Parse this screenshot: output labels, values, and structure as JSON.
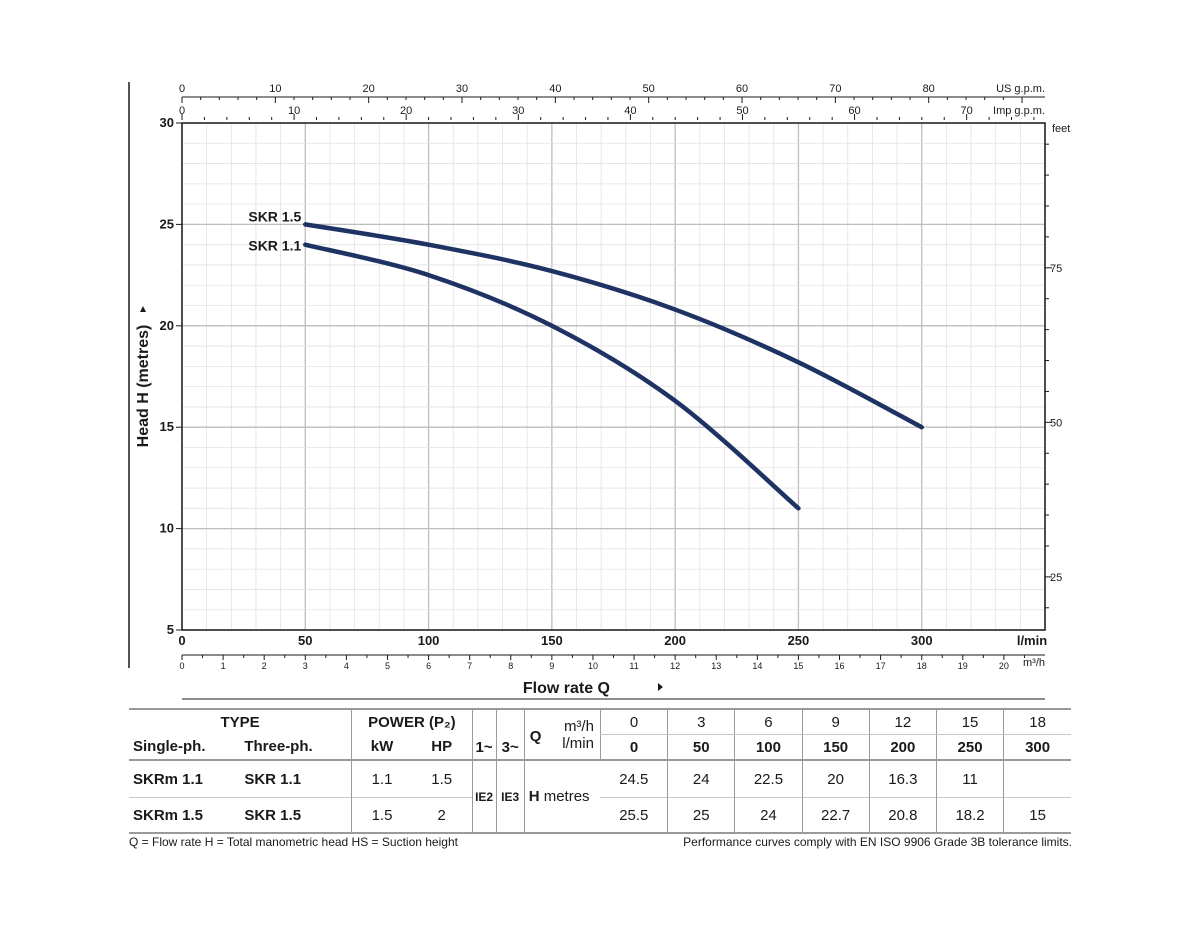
{
  "chart_data": {
    "type": "line",
    "ylabel": "Head H (metres)",
    "xlabel": "Flow rate Q",
    "x_unit": "l/min",
    "xlim": [
      0,
      350
    ],
    "ylim": [
      5,
      30
    ],
    "y_ticks": [
      5,
      10,
      15,
      20,
      25,
      30
    ],
    "x_ticks": [
      0,
      50,
      100,
      150,
      200,
      250,
      300
    ],
    "grid": true,
    "series": [
      {
        "name": "SKR 1.5",
        "color": "#1f3264",
        "x": [
          50,
          100,
          150,
          200,
          250,
          300
        ],
        "y": [
          25,
          24,
          22.7,
          20.8,
          18.2,
          15
        ]
      },
      {
        "name": "SKR 1.1",
        "color": "#1f3264",
        "x": [
          50,
          100,
          150,
          200,
          250
        ],
        "y": [
          24,
          22.5,
          20,
          16.3,
          11
        ]
      }
    ],
    "top_axis_us": {
      "label": "US g.p.m.",
      "ticks": [
        0,
        10,
        20,
        30,
        40,
        50,
        60,
        70,
        80
      ]
    },
    "top_axis_imp": {
      "label": "Imp g.p.m.",
      "ticks": [
        0,
        10,
        20,
        30,
        40,
        50,
        60,
        70
      ]
    },
    "right_axis": {
      "label": "feet",
      "ticks": [
        25,
        50,
        75
      ]
    },
    "bottom_axis_m3h": {
      "label": "m³/h",
      "ticks": [
        0,
        1,
        2,
        3,
        4,
        5,
        6,
        7,
        8,
        9,
        10,
        11,
        12,
        13,
        14,
        15,
        16,
        17,
        18,
        19,
        20
      ]
    }
  },
  "table": {
    "type_header": "TYPE",
    "power_header": "POWER (P₂)",
    "single_ph": "Single-ph.",
    "three_ph": "Three-ph.",
    "kw": "kW",
    "hp": "HP",
    "phase1": "1~",
    "phase3": "3~",
    "q_label": "Q",
    "m3h_label": "m³/h",
    "lmin_label": "l/min",
    "m3h_values": [
      "0",
      "3",
      "6",
      "9",
      "12",
      "15",
      "18"
    ],
    "lmin_values": [
      "0",
      "50",
      "100",
      "150",
      "200",
      "250",
      "300"
    ],
    "ie2": "IE2",
    "ie3": "IE3",
    "h_label": "H",
    "h_unit": "metres",
    "rows": [
      {
        "single": "SKRm 1.1",
        "three": "SKR 1.1",
        "kw": "1.1",
        "hp": "1.5",
        "h": [
          "24.5",
          "24",
          "22.5",
          "20",
          "16.3",
          "11",
          ""
        ]
      },
      {
        "single": "SKRm 1.5",
        "three": "SKR 1.5",
        "kw": "1.5",
        "hp": "2",
        "h": [
          "25.5",
          "25",
          "24",
          "22.7",
          "20.8",
          "18.2",
          "15"
        ]
      }
    ]
  },
  "footnote_left": "Q = Flow rate  H = Total manometric head  HS = Suction height",
  "footnote_right": "Performance curves comply with EN ISO 9906 Grade 3B tolerance limits."
}
